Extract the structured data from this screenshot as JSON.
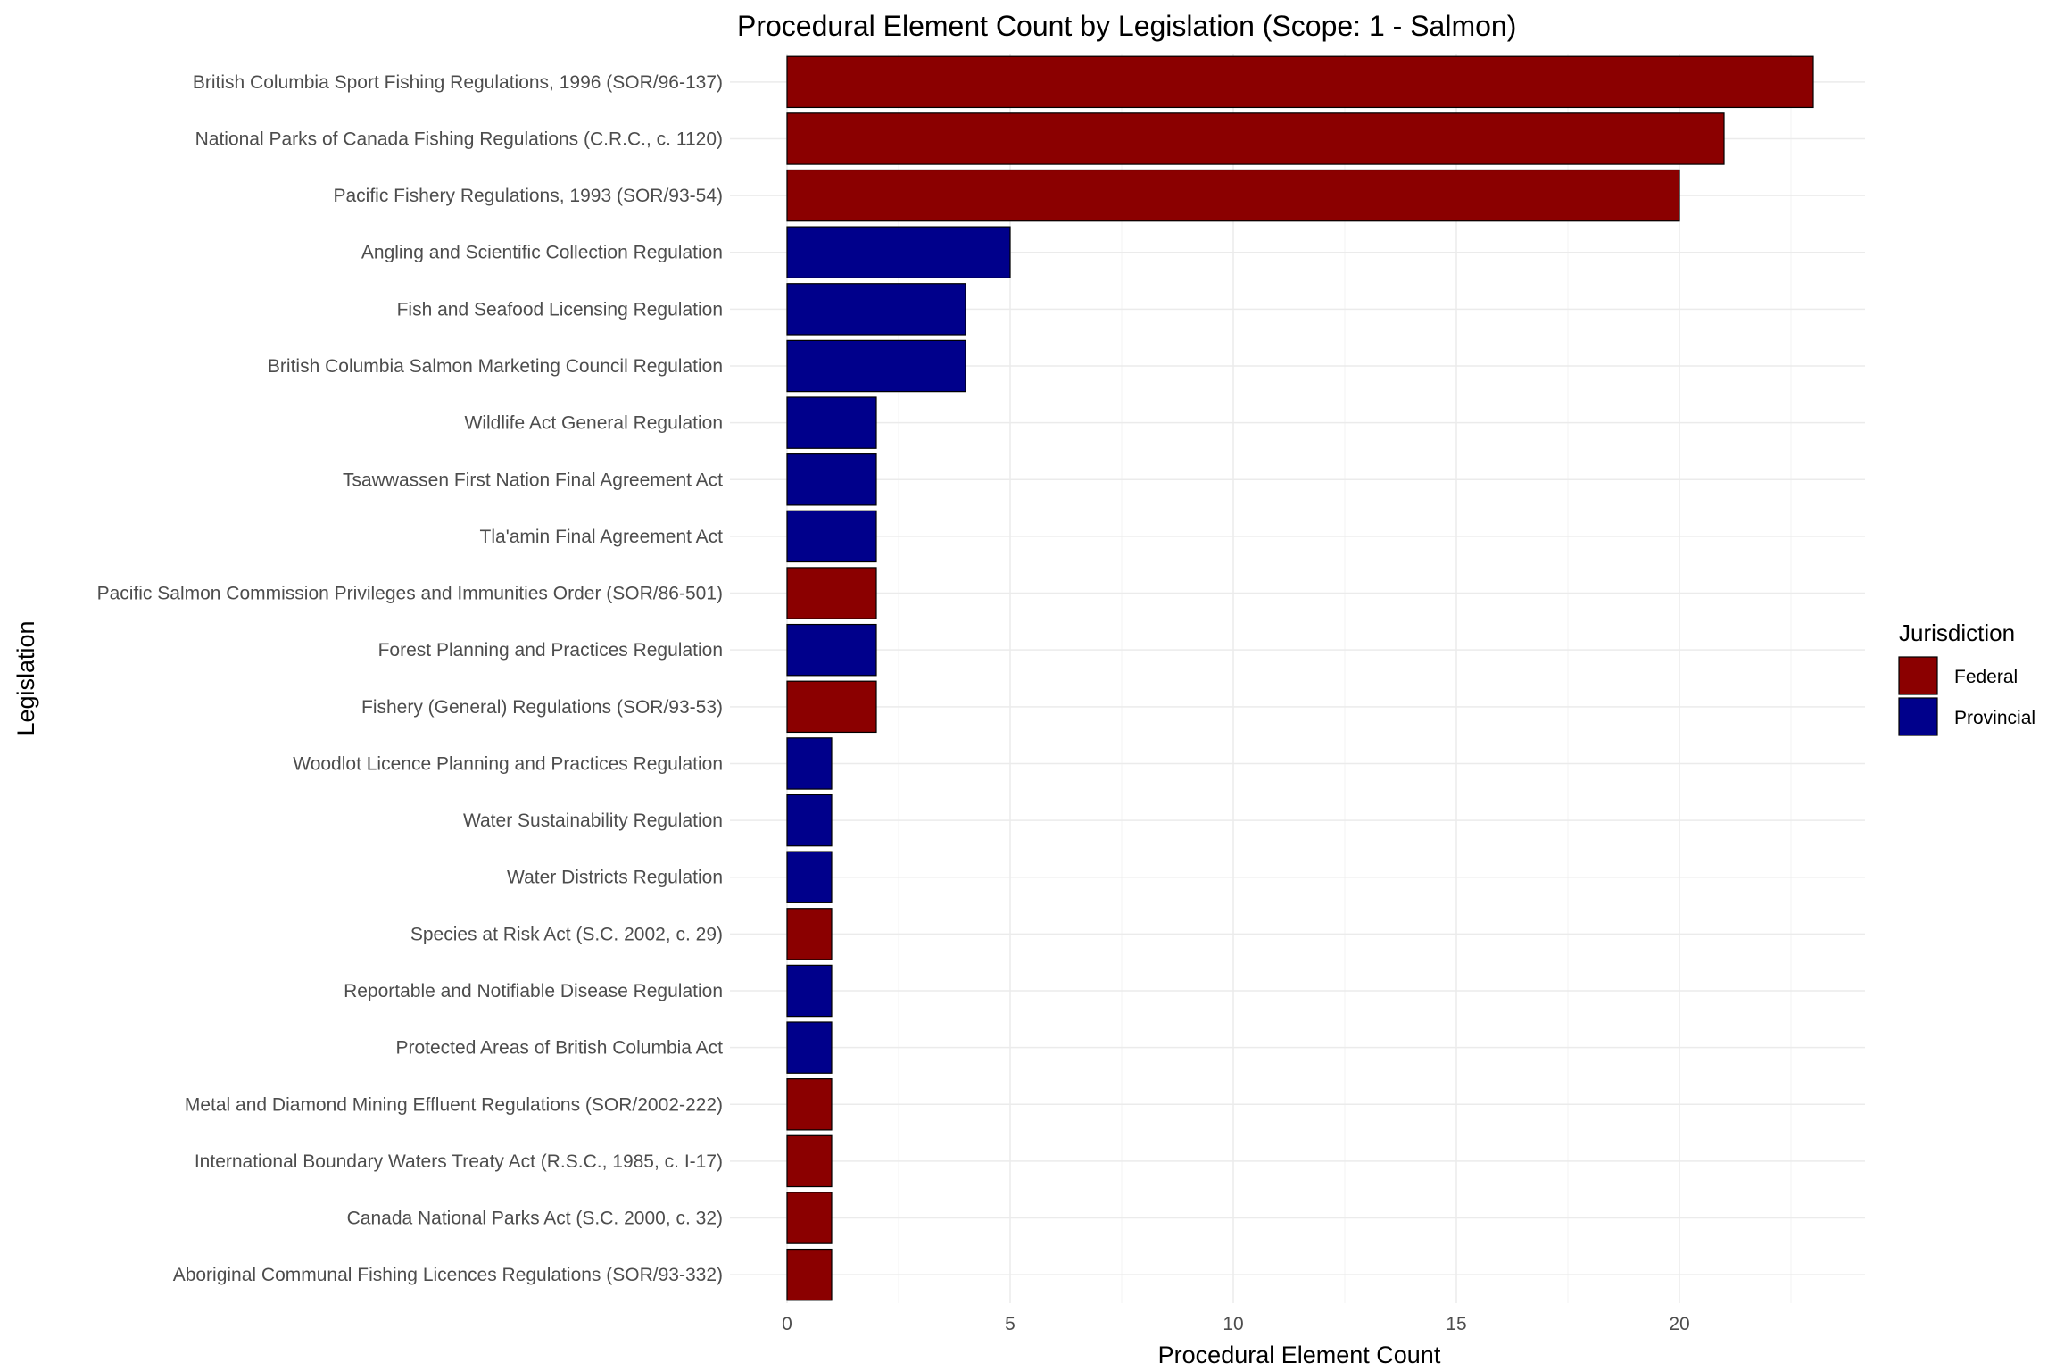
{
  "chart_data": {
    "type": "bar",
    "orientation": "horizontal",
    "title": "Procedural Element Count by Legislation (Scope: 1 - Salmon)",
    "xlabel": "Procedural Element Count",
    "ylabel": "Legislation",
    "xlim": [
      0,
      24
    ],
    "xticks": [
      0,
      5,
      10,
      15,
      20
    ],
    "grid": true,
    "legend": {
      "title": "Jurisdiction",
      "position": "right",
      "entries": [
        {
          "name": "Federal",
          "color": "#8B0000"
        },
        {
          "name": "Provincial",
          "color": "#00008B"
        }
      ]
    },
    "categories": [
      "British Columbia Sport Fishing Regulations, 1996 (SOR/96-137)",
      "National Parks of Canada Fishing Regulations (C.R.C., c. 1120)",
      "Pacific Fishery Regulations, 1993 (SOR/93-54)",
      "Angling and Scientific Collection Regulation",
      "Fish and Seafood Licensing Regulation",
      "British Columbia Salmon Marketing Council Regulation",
      "Wildlife Act General Regulation",
      "Tsawwassen First Nation Final Agreement Act",
      "Tla'amin Final Agreement Act",
      "Pacific Salmon Commission Privileges and Immunities Order (SOR/86-501)",
      "Forest Planning and Practices Regulation",
      "Fishery (General) Regulations (SOR/93-53)",
      "Woodlot Licence Planning and Practices Regulation",
      "Water Sustainability Regulation",
      "Water Districts Regulation",
      "Species at Risk Act (S.C. 2002, c. 29)",
      "Reportable and Notifiable Disease Regulation",
      "Protected Areas of British Columbia Act",
      "Metal and Diamond Mining Effluent Regulations (SOR/2002-222)",
      "International Boundary Waters Treaty Act (R.S.C., 1985, c. I-17)",
      "Canada National Parks Act (S.C. 2000, c. 32)",
      "Aboriginal Communal Fishing Licences Regulations (SOR/93-332)"
    ],
    "values": [
      23,
      21,
      20,
      5,
      4,
      4,
      2,
      2,
      2,
      2,
      2,
      2,
      1,
      1,
      1,
      1,
      1,
      1,
      1,
      1,
      1,
      1
    ],
    "jurisdiction": [
      "Federal",
      "Federal",
      "Federal",
      "Provincial",
      "Provincial",
      "Provincial",
      "Provincial",
      "Provincial",
      "Provincial",
      "Federal",
      "Provincial",
      "Federal",
      "Provincial",
      "Provincial",
      "Provincial",
      "Federal",
      "Provincial",
      "Provincial",
      "Federal",
      "Federal",
      "Federal",
      "Federal"
    ]
  }
}
